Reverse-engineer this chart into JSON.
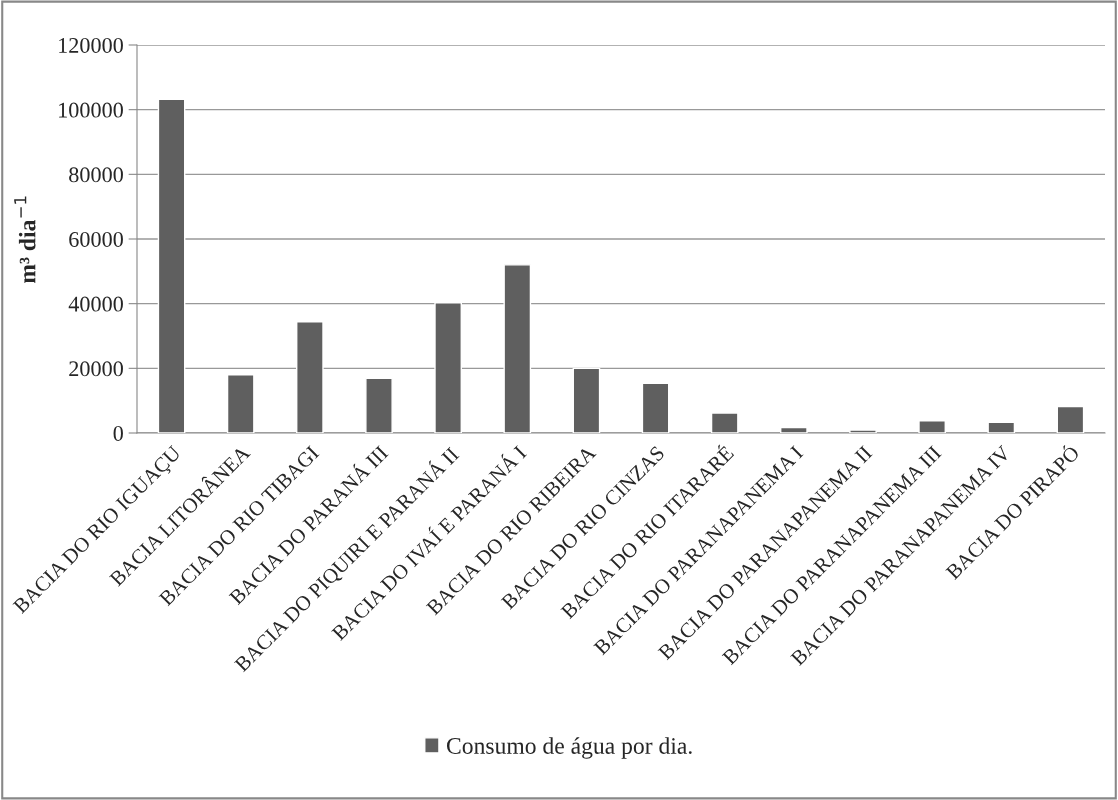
{
  "chart_data": {
    "type": "bar",
    "ylabel": "m³ dia$^{−1}$",
    "categories": [
      "BACIA DO RIO IGUAÇU",
      "BACIA LITORÂNEA",
      "BACIA DO RIO TIBAGI",
      "BACIA DO PARANÁ III",
      "BACIA DO PIQUIRI E PARANÁ II",
      "BACIA DO IVAÍ E PARANÁ I",
      "BACIA DO RIO RIBEIRA",
      "BACIA DO RIO CINZAS",
      "BACIA DO RIO ITARARÉ",
      "BACIA DO PARANAPANEMA I",
      "BACIA DO PARANAPANEMA II",
      "BACIA DO PARANAPANEMA III",
      "BACIA DO PARANAPANEMA IV",
      "BACIA DO PIRAPÓ"
    ],
    "series": [
      {
        "name": "Consumo de água por dia.",
        "color": "#5f5f5f",
        "values": [
          103200,
          18000,
          34400,
          16900,
          40300,
          52000,
          20000,
          15400,
          6200,
          1700,
          900,
          3800,
          3300,
          8200
        ]
      }
    ],
    "ylim": [
      0,
      120000
    ],
    "yticks": [
      0,
      20000,
      40000,
      60000,
      80000,
      100000,
      120000
    ],
    "grid": "y",
    "legend": "bottom"
  }
}
